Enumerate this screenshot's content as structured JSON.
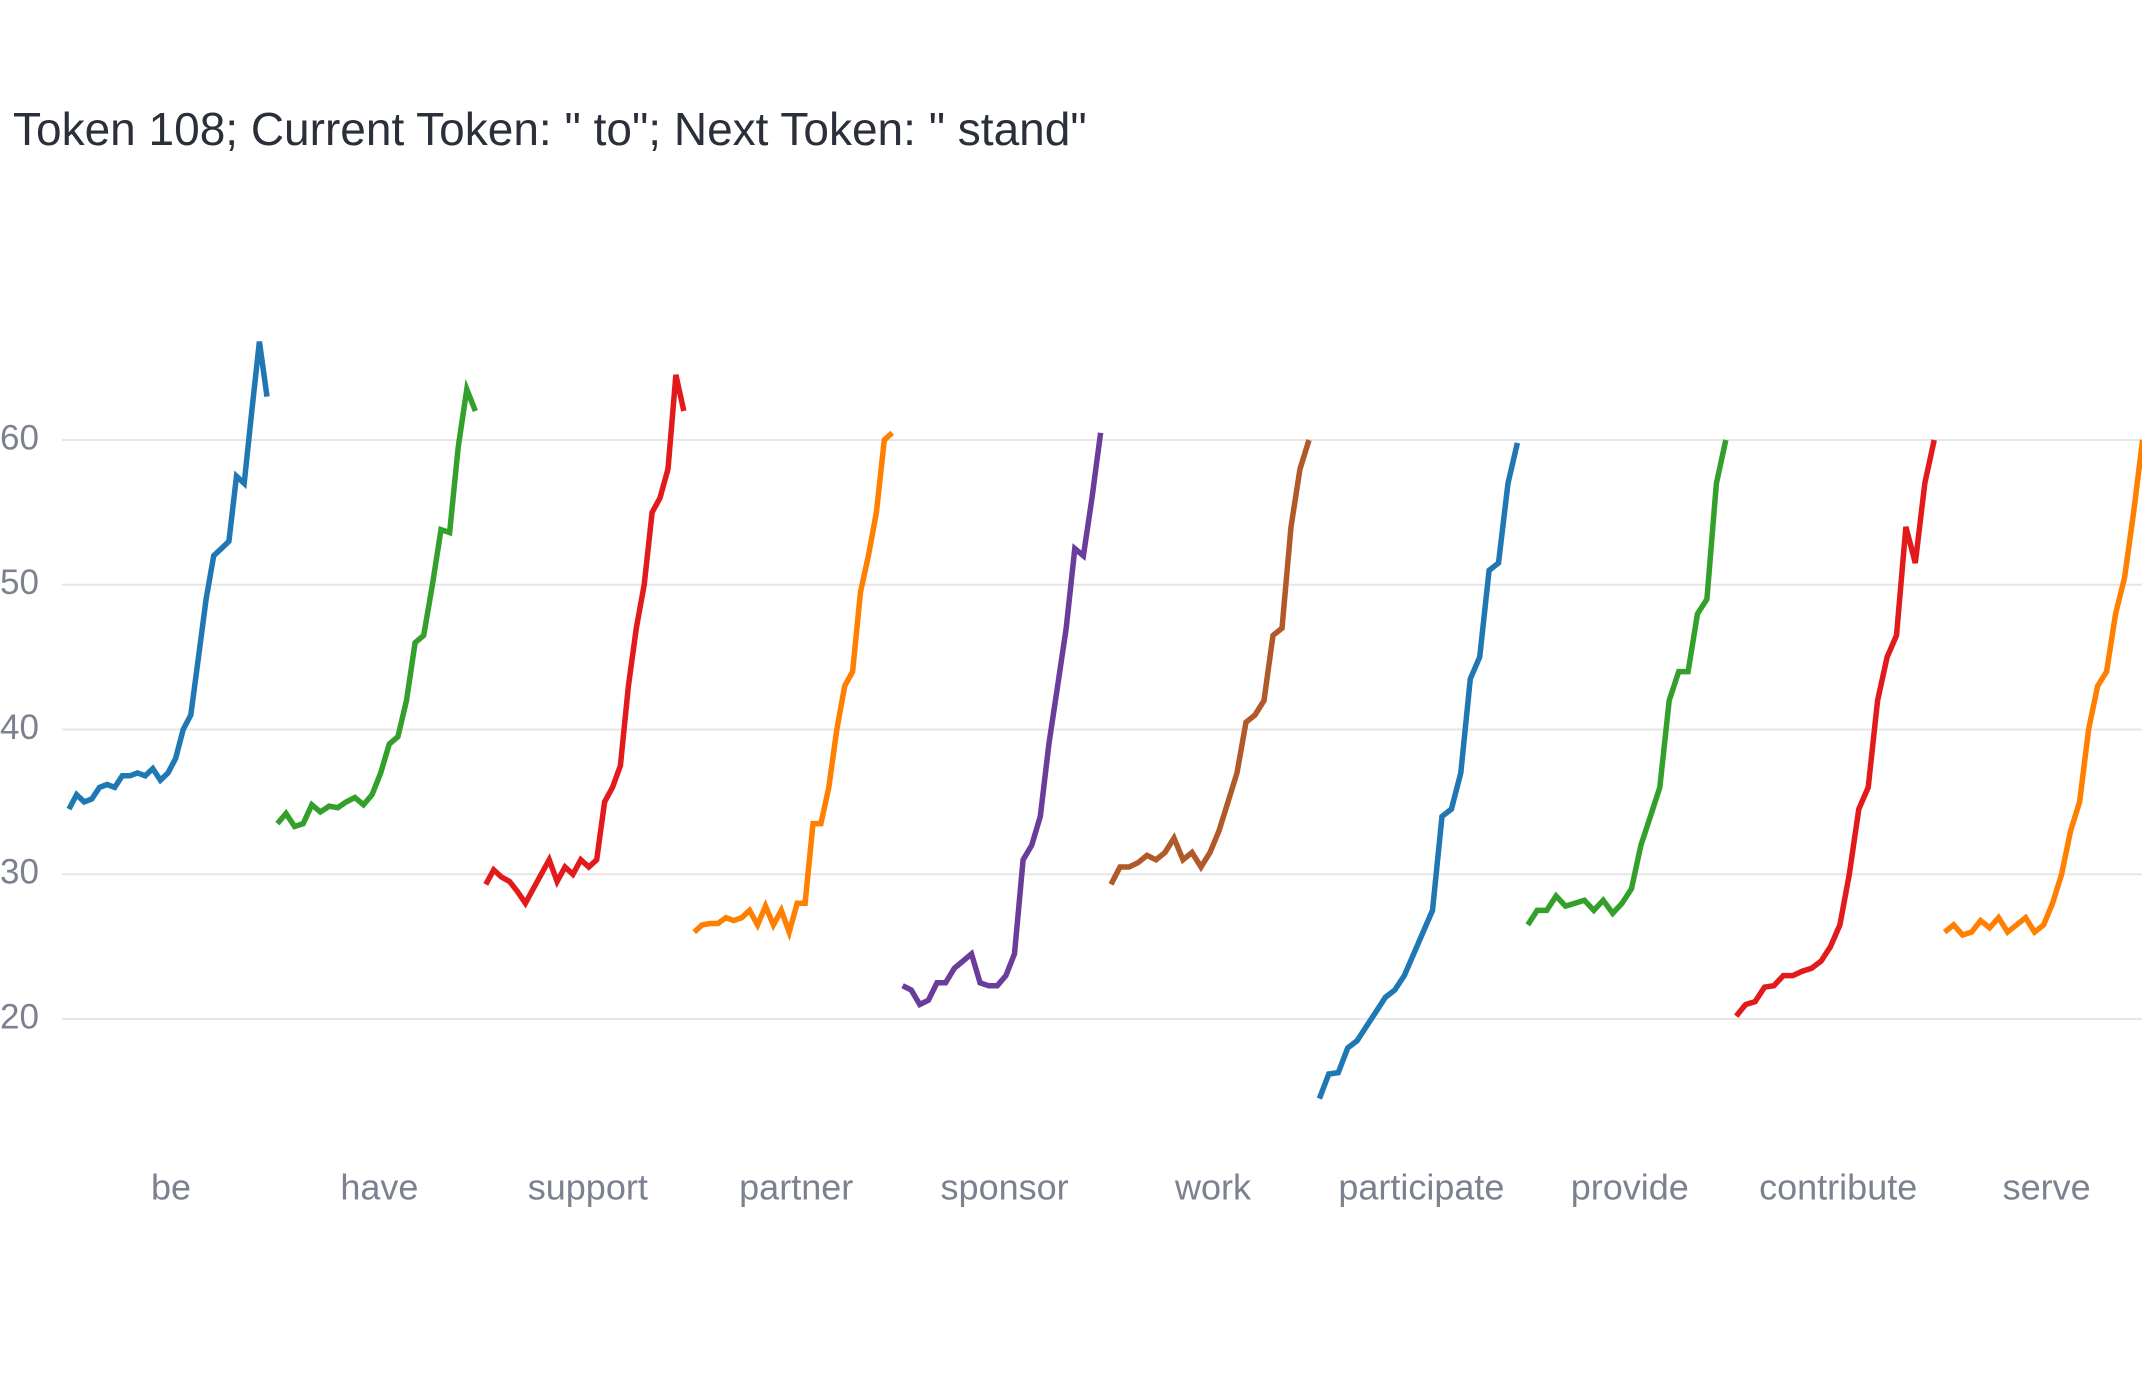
{
  "chart_data": {
    "type": "line",
    "title": "Token 108; Current Token: \" to\"; Next Token: \" stand\"",
    "ylim": [
      12,
      68
    ],
    "yticks": [
      20,
      30,
      40,
      50,
      60
    ],
    "grid": true,
    "series": [
      {
        "name": "be",
        "color": "#1f78b4",
        "values": [
          34.5,
          35.5,
          35,
          35.2,
          36,
          36.2,
          36,
          36.8,
          36.8,
          37,
          36.8,
          37.3,
          36.5,
          37,
          38,
          40,
          41,
          45,
          49,
          52,
          52.5,
          53,
          57.5,
          57,
          62,
          66.8,
          63
        ]
      },
      {
        "name": "have",
        "color": "#33a02c",
        "values": [
          33.5,
          34.2,
          33.3,
          33.5,
          34.8,
          34.3,
          34.7,
          34.6,
          35,
          35.3,
          34.8,
          35.5,
          37,
          39,
          39.5,
          42,
          46,
          46.5,
          50,
          53.8,
          53.6,
          59.5,
          63.5,
          62
        ]
      },
      {
        "name": "support",
        "color": "#e31a1c",
        "values": [
          29.3,
          30.3,
          29.8,
          29.5,
          28.8,
          28,
          29,
          30,
          31,
          29.5,
          30.5,
          30,
          31,
          30.5,
          31,
          35,
          36,
          37.5,
          43,
          47,
          50,
          55,
          56,
          58,
          64.5,
          62
        ]
      },
      {
        "name": "partner",
        "color": "#ff7f00",
        "values": [
          26,
          26.5,
          26.6,
          26.6,
          27,
          26.8,
          27,
          27.5,
          26.5,
          27.8,
          26.5,
          27.5,
          26,
          28,
          28,
          33.5,
          33.5,
          36,
          40,
          43,
          44,
          49.5,
          52,
          55,
          60,
          60.5
        ]
      },
      {
        "name": "sponsor",
        "color": "#6a3d9a",
        "values": [
          22.3,
          22,
          21,
          21.3,
          22.5,
          22.5,
          23.5,
          24,
          24.5,
          22.5,
          22.3,
          22.3,
          23,
          24.5,
          31,
          32,
          34,
          39,
          43,
          47,
          52.5,
          52,
          56,
          60.5
        ]
      },
      {
        "name": "work",
        "color": "#b15928",
        "values": [
          29.3,
          30.5,
          30.5,
          30.8,
          31.3,
          31,
          31.5,
          32.5,
          31,
          31.5,
          30.5,
          31.5,
          33,
          35,
          37,
          40.5,
          41,
          42,
          46.5,
          47,
          54,
          58,
          60
        ]
      },
      {
        "name": "participate",
        "color": "#1f78b4",
        "values": [
          14.5,
          16.2,
          16.3,
          18,
          18.5,
          19.5,
          20.5,
          21.5,
          22,
          23,
          24.5,
          26,
          27.5,
          34,
          34.5,
          37,
          43.5,
          45,
          51,
          51.5,
          57,
          59.8
        ]
      },
      {
        "name": "provide",
        "color": "#33a02c",
        "values": [
          26.5,
          27.5,
          27.5,
          28.5,
          27.8,
          28,
          28.2,
          27.5,
          28.2,
          27.3,
          28,
          29,
          32,
          34,
          36,
          42,
          44,
          44,
          48,
          49,
          57,
          60
        ]
      },
      {
        "name": "contribute",
        "color": "#e31a1c",
        "values": [
          20.2,
          21,
          21.2,
          22.2,
          22.3,
          23,
          23,
          23.3,
          23.5,
          24,
          25,
          26.5,
          30,
          34.5,
          36,
          42,
          45,
          46.5,
          54,
          51.5,
          57,
          60
        ]
      },
      {
        "name": "serve",
        "color": "#ff7f00",
        "values": [
          26,
          26.5,
          25.8,
          26,
          26.8,
          26.3,
          27,
          26,
          26.5,
          27,
          26,
          26.5,
          28,
          30,
          33,
          35,
          40,
          43,
          44,
          48,
          50.5,
          55,
          60
        ]
      }
    ]
  }
}
